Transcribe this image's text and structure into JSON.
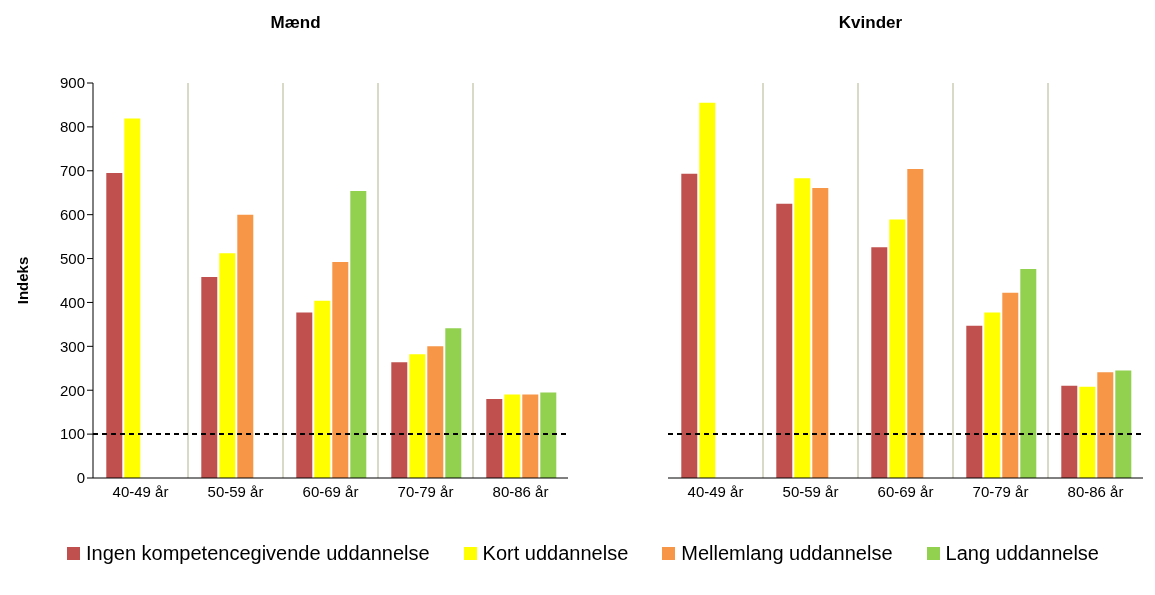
{
  "chart_data": [
    {
      "type": "bar",
      "title": "Mænd",
      "ylabel": "Indeks",
      "categories": [
        "40-49 år",
        "50-59 år",
        "60-69 år",
        "70-79 år",
        "80-86 år"
      ],
      "ylim": [
        0,
        900
      ],
      "yticks": [
        0,
        100,
        200,
        300,
        400,
        500,
        600,
        700,
        800,
        900
      ],
      "grid": "x",
      "legend": "bottom",
      "ref_lines": [
        {
          "axis": "y",
          "value": 100,
          "color": "#000000",
          "line_style": "dashed"
        }
      ],
      "series": [
        {
          "name": "Ingen kompetencegivende uddannelse",
          "color": "#c0504d",
          "values": [
            695,
            458,
            377,
            264,
            180
          ]
        },
        {
          "name": "Kort uddannelse",
          "color": "#ffff00",
          "values": [
            819,
            512,
            404,
            282,
            190
          ]
        },
        {
          "name": "Mellemlang uddannelse",
          "color": "#f79646",
          "values": [
            null,
            600,
            492,
            300,
            190
          ]
        },
        {
          "name": "Lang uddannelse",
          "color": "#92d050",
          "values": [
            null,
            null,
            654,
            341,
            195
          ]
        }
      ]
    },
    {
      "type": "bar",
      "title": "Kvinder",
      "categories": [
        "40-49 år",
        "50-59 år",
        "60-69 år",
        "70-79 år",
        "80-86 år"
      ],
      "ylim": [
        0,
        900
      ],
      "yticks": [
        0,
        100,
        200,
        300,
        400,
        500,
        600,
        700,
        800,
        900
      ],
      "tick_labels": "x",
      "grid": "x",
      "ref_lines": [
        {
          "axis": "y",
          "value": 100,
          "color": "#000000",
          "line_style": "dashed"
        }
      ],
      "series": [
        {
          "color": "#c0504d",
          "values": [
            693,
            625,
            526,
            347,
            210
          ]
        },
        {
          "color": "#ffff00",
          "values": [
            855,
            683,
            589,
            377,
            208
          ]
        },
        {
          "color": "#f79646",
          "values": [
            null,
            661,
            704,
            422,
            241
          ]
        },
        {
          "color": "#92d050",
          "values": [
            null,
            null,
            null,
            476,
            245
          ]
        }
      ]
    }
  ]
}
